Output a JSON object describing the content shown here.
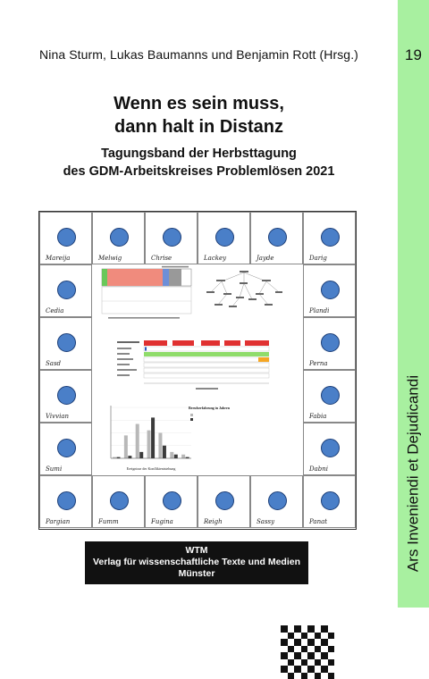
{
  "editors": "Nina Sturm, Lukas Baumanns und Benjamin Rott (Hrsg.)",
  "title_line1": "Wenn es sein muss,",
  "title_line2": "dann halt in Distanz",
  "subtitle_line1": "Tagungsband der Herbsttagung",
  "subtitle_line2": "des GDM-Arbeitskreises Problemlösen 2021",
  "spine_number": "19",
  "series_title": "Ars Inveniendi et Dejudicandi",
  "publisher": {
    "line1": "WTM",
    "line2": "Verlag für wissenschaftliche Texte und Medien",
    "line3": "Münster"
  },
  "colors": {
    "spine": "#a8f0a0",
    "dot": "#4a7fc8",
    "timeline_red": "#e03131",
    "timeline_green": "#8fdc6a",
    "timeline_orange": "#f5a623"
  },
  "board_signatures": [
    "Mareija",
    "Melwig",
    "Chrise",
    "Lackey",
    "Jayde",
    "Darig",
    "Cedia",
    "Plandi",
    "Sasd",
    "Perna",
    "Vivvian",
    "Fabia",
    "Sumi",
    "Dabni",
    "Pargian",
    "Fumm",
    "Fugina",
    "Reigh",
    "Sassy",
    "Panat"
  ],
  "chart_data": [
    {
      "type": "bar",
      "title": "",
      "xlabel": "Ereignisse der Konfliktentstehung",
      "ylabel": "",
      "legend_title": "Berufserfahrung in Jahren",
      "series": [
        {
          "name": "",
          "values": [
            1,
            18,
            27,
            22,
            20,
            5,
            3
          ]
        },
        {
          "name": "",
          "values": [
            1,
            2,
            5,
            32,
            10,
            3,
            1
          ]
        }
      ]
    }
  ]
}
